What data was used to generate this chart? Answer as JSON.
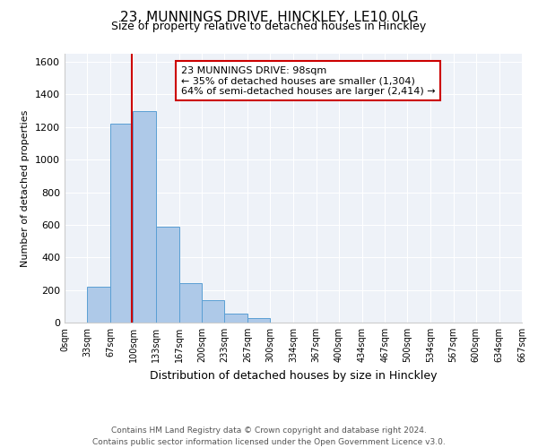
{
  "title": "23, MUNNINGS DRIVE, HINCKLEY, LE10 0LG",
  "subtitle": "Size of property relative to detached houses in Hinckley",
  "xlabel": "Distribution of detached houses by size in Hinckley",
  "ylabel": "Number of detached properties",
  "bin_edges": [
    0,
    33,
    67,
    100,
    133,
    167,
    200,
    233,
    267,
    300,
    334,
    367,
    400,
    434,
    467,
    500,
    534,
    567,
    600,
    634,
    667
  ],
  "bar_heights": [
    0,
    220,
    1220,
    1300,
    590,
    240,
    140,
    55,
    25,
    0,
    0,
    0,
    0,
    0,
    0,
    0,
    0,
    0,
    0,
    0
  ],
  "bar_color": "#aec9e8",
  "bar_edge_color": "#5a9fd4",
  "property_line_x": 98,
  "property_line_color": "#cc0000",
  "ylim": [
    0,
    1650
  ],
  "yticks": [
    0,
    200,
    400,
    600,
    800,
    1000,
    1200,
    1400,
    1600
  ],
  "annotation_line1": "23 MUNNINGS DRIVE: 98sqm",
  "annotation_line2": "← 35% of detached houses are smaller (1,304)",
  "annotation_line3": "64% of semi-detached houses are larger (2,414) →",
  "annotation_box_color": "#ffffff",
  "annotation_box_edge_color": "#cc0000",
  "footer_line1": "Contains HM Land Registry data © Crown copyright and database right 2024.",
  "footer_line2": "Contains public sector information licensed under the Open Government Licence v3.0.",
  "tick_labels": [
    "0sqm",
    "33sqm",
    "67sqm",
    "100sqm",
    "133sqm",
    "167sqm",
    "200sqm",
    "233sqm",
    "267sqm",
    "300sqm",
    "334sqm",
    "367sqm",
    "400sqm",
    "434sqm",
    "467sqm",
    "500sqm",
    "534sqm",
    "567sqm",
    "600sqm",
    "634sqm",
    "667sqm"
  ],
  "background_color": "#eef2f8",
  "title_fontsize": 11,
  "subtitle_fontsize": 9,
  "ylabel_fontsize": 8,
  "xlabel_fontsize": 9,
  "tick_fontsize": 7,
  "ytick_fontsize": 8,
  "annotation_fontsize": 8,
  "footer_fontsize": 6.5
}
